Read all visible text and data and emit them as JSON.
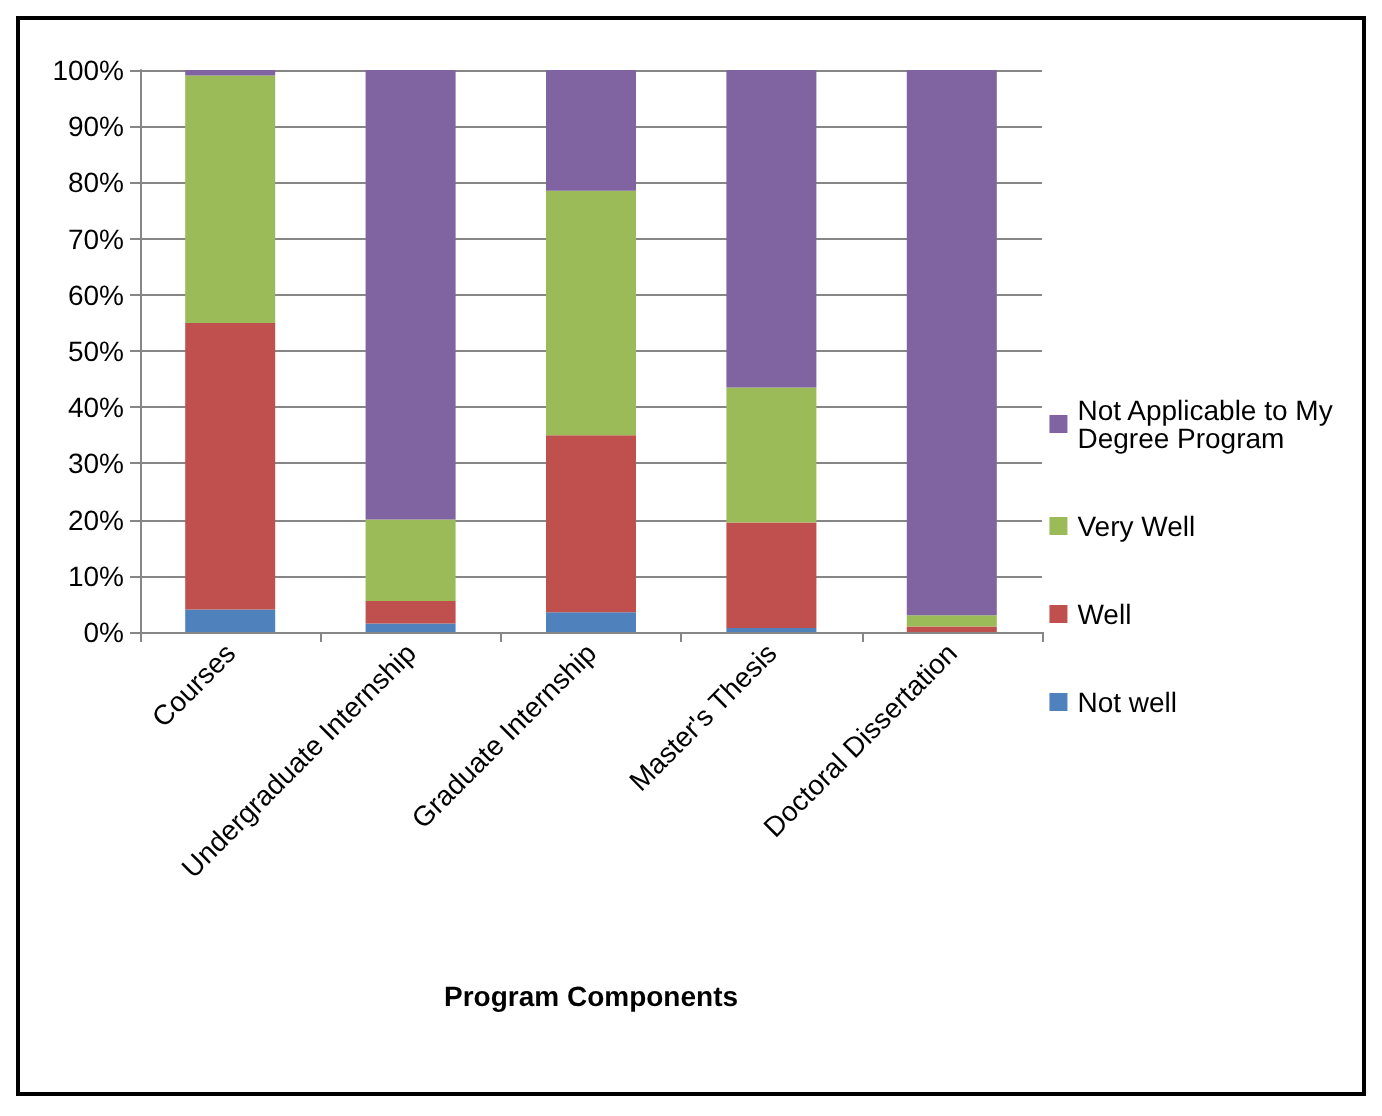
{
  "chart_data": {
    "type": "bar",
    "stacked": true,
    "xlabel": "Program Components",
    "categories": [
      "Courses",
      "Undergraduate Internship",
      "Graduate Internship",
      "Master's Thesis",
      "Doctoral Dissertation"
    ],
    "series": [
      {
        "name": "Not well",
        "color": "#4f81bd",
        "values": [
          4,
          1.5,
          3.5,
          0.7,
          0
        ]
      },
      {
        "name": "Well",
        "color": "#c0504d",
        "values": [
          51,
          4,
          31.5,
          18.8,
          1
        ]
      },
      {
        "name": "Very Well",
        "color": "#9bbb59",
        "values": [
          44,
          14.5,
          43.5,
          24,
          2
        ]
      },
      {
        "name": "Not Applicable to My Degree Program",
        "color": "#8064a2",
        "values": [
          1,
          80,
          21.5,
          56.5,
          97
        ]
      }
    ],
    "ylim": [
      0,
      100
    ],
    "yticks": [
      {
        "value": 0,
        "label": "0%"
      },
      {
        "value": 10,
        "label": "10%"
      },
      {
        "value": 20,
        "label": "20%"
      },
      {
        "value": 30,
        "label": "30%"
      },
      {
        "value": 40,
        "label": "40%"
      },
      {
        "value": 50,
        "label": "50%"
      },
      {
        "value": 60,
        "label": "60%"
      },
      {
        "value": 70,
        "label": "70%"
      },
      {
        "value": 80,
        "label": "80%"
      },
      {
        "value": 90,
        "label": "90%"
      },
      {
        "value": 100,
        "label": "100%"
      }
    ],
    "grid": "y",
    "legend": "right"
  }
}
